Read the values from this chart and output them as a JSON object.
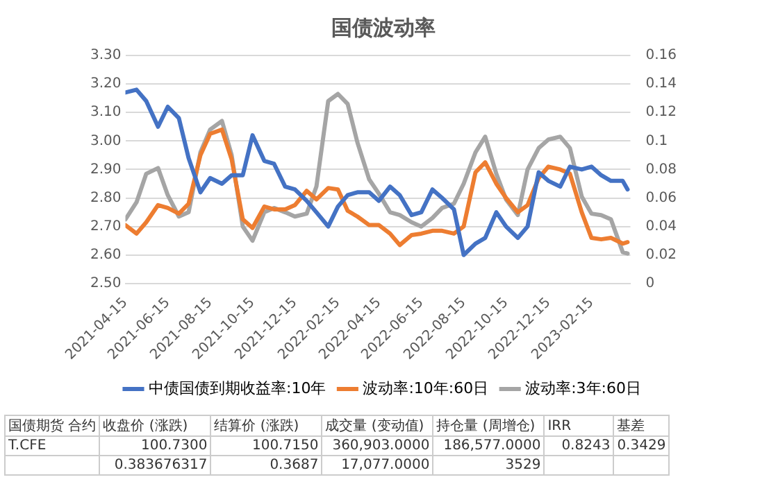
{
  "chart_data": {
    "type": "line",
    "title": "国债波动率",
    "x": [
      "2021-04-15",
      "2021-05-01",
      "2021-05-15",
      "2021-06-01",
      "2021-06-15",
      "2021-07-01",
      "2021-07-15",
      "2021-08-01",
      "2021-08-15",
      "2021-09-01",
      "2021-09-15",
      "2021-10-01",
      "2021-10-15",
      "2021-11-01",
      "2021-11-15",
      "2021-12-01",
      "2021-12-15",
      "2022-01-01",
      "2022-01-15",
      "2022-02-01",
      "2022-02-15",
      "2022-03-01",
      "2022-03-15",
      "2022-04-01",
      "2022-04-15",
      "2022-05-01",
      "2022-05-15",
      "2022-06-01",
      "2022-06-15",
      "2022-07-01",
      "2022-07-15",
      "2022-08-01",
      "2022-08-15",
      "2022-09-01",
      "2022-09-15",
      "2022-10-01",
      "2022-10-15",
      "2022-11-01",
      "2022-11-15",
      "2022-12-01",
      "2022-12-15",
      "2023-01-01",
      "2023-01-15",
      "2023-02-01",
      "2023-02-15",
      "2023-03-01",
      "2023-03-15",
      "2023-04-01",
      "2023-04-08"
    ],
    "series": [
      {
        "name": "中债国债到期收益率:10年",
        "color": "#4472c4",
        "values": [
          3.17,
          3.18,
          3.14,
          3.05,
          3.12,
          3.08,
          2.94,
          2.82,
          2.87,
          2.85,
          2.88,
          2.88,
          3.02,
          2.93,
          2.92,
          2.84,
          2.83,
          2.79,
          2.75,
          2.7,
          2.77,
          2.81,
          2.82,
          2.82,
          2.79,
          2.84,
          2.81,
          2.74,
          2.75,
          2.83,
          2.8,
          2.76,
          2.6,
          2.64,
          2.66,
          2.75,
          2.7,
          2.66,
          2.7,
          2.89,
          2.86,
          2.84,
          2.91,
          2.9,
          2.91,
          2.88,
          2.86,
          2.86,
          2.83
        ]
      },
      {
        "name": "波动率:10年:60日",
        "color": "#ed7d31",
        "axis": "y2",
        "values": [
          0.041,
          0.035,
          0.043,
          0.055,
          0.053,
          0.049,
          0.056,
          0.09,
          0.105,
          0.108,
          0.087,
          0.045,
          0.039,
          0.054,
          0.052,
          0.052,
          0.055,
          0.065,
          0.059,
          0.067,
          0.066,
          0.051,
          0.047,
          0.041,
          0.041,
          0.035,
          0.027,
          0.034,
          0.035,
          0.037,
          0.037,
          0.035,
          0.04,
          0.078,
          0.085,
          0.07,
          0.06,
          0.05,
          0.055,
          0.074,
          0.082,
          0.08,
          0.077,
          0.05,
          0.032,
          0.031,
          0.032,
          0.028,
          0.029
        ]
      },
      {
        "name": "波动率:3年:60日",
        "color": "#a5a5a5",
        "axis": "y2",
        "values": [
          0.045,
          0.057,
          0.077,
          0.081,
          0.062,
          0.047,
          0.05,
          0.092,
          0.108,
          0.114,
          0.09,
          0.04,
          0.03,
          0.05,
          0.053,
          0.05,
          0.047,
          0.049,
          0.068,
          0.128,
          0.133,
          0.126,
          0.099,
          0.073,
          0.063,
          0.05,
          0.048,
          0.043,
          0.04,
          0.046,
          0.053,
          0.056,
          0.07,
          0.092,
          0.103,
          0.077,
          0.059,
          0.048,
          0.08,
          0.095,
          0.101,
          0.103,
          0.095,
          0.061,
          0.049,
          0.048,
          0.045,
          0.022,
          0.021
        ]
      }
    ],
    "xlim": [
      "2021-04-15",
      "2023-04-12"
    ],
    "xticks": [
      "2021-04-15",
      "2021-06-15",
      "2021-08-15",
      "2021-10-15",
      "2021-12-15",
      "2022-02-15",
      "2022-04-15",
      "2022-06-15",
      "2022-08-15",
      "2022-10-15",
      "2022-12-15",
      "2023-02-15"
    ],
    "ylim": [
      2.5,
      3.3
    ],
    "yticks": [
      {
        "value": 2.5,
        "label": "2.50"
      },
      {
        "value": 2.6,
        "label": "2.60"
      },
      {
        "value": 2.7,
        "label": "2.70"
      },
      {
        "value": 2.8,
        "label": "2.80"
      },
      {
        "value": 2.9,
        "label": "2.90"
      },
      {
        "value": 3.0,
        "label": "3.00"
      },
      {
        "value": 3.1,
        "label": "3.10"
      },
      {
        "value": 3.2,
        "label": "3.20"
      },
      {
        "value": 3.3,
        "label": "3.30"
      }
    ],
    "y2lim": [
      0,
      0.16
    ],
    "y2ticks": [
      0,
      0.02,
      0.04,
      0.06,
      0.08,
      0.1,
      0.12,
      0.14,
      0.16
    ],
    "grid": "y",
    "legend": "bottom",
    "marker": "none",
    "line_style": "solid",
    "annotations": [
      "国债期货 合约",
      "收盘价 (涨跌)",
      "结算价 (涨跌)",
      "成交量 (变动值)",
      "持仓量 (周增仓)",
      "IRR",
      "基差",
      "T.CFE",
      "100.7300",
      "100.7150",
      "360,903.0000",
      "186,577.0000",
      "0.8243",
      "0.3429",
      "0.383676317",
      "0.3687",
      "17,077.0000",
      "3529"
    ]
  }
}
